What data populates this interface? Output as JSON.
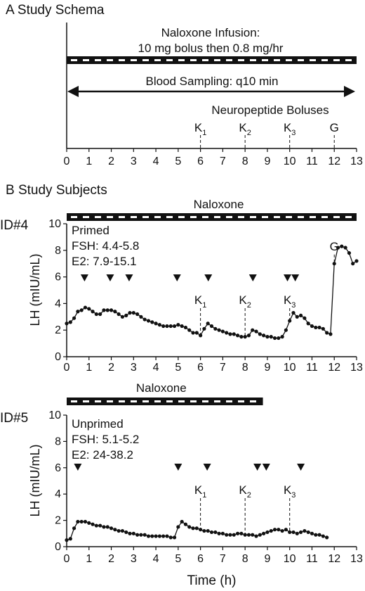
{
  "panel_a": {
    "label": "A  Study Schema",
    "infusion_label_1": "Naloxone Infusion:",
    "infusion_label_2": "10 mg bolus then 0.8 mg/hr",
    "sampling_label": "Blood Sampling: q10 min",
    "boluses_label": "Neuropeptide Boluses",
    "boluses": [
      {
        "label": "K",
        "sub": "1",
        "x": 6
      },
      {
        "label": "K",
        "sub": "2",
        "x": 8
      },
      {
        "label": "K",
        "sub": "3",
        "x": 10
      },
      {
        "label": "G",
        "sub": "",
        "x": 12
      }
    ]
  },
  "panel_b": {
    "label": "B  Study Subjects"
  },
  "chart_data": [
    {
      "type": "line",
      "subject": "ID#4",
      "bar_label": "Naloxone",
      "naloxone_bar": [
        0,
        13
      ],
      "info": [
        "Primed",
        "FSH: 4.4-5.8",
        "E2: 7.9-15.1"
      ],
      "xlabel": "",
      "ylabel": "LH (mIU/mL)",
      "xlim": [
        0,
        13
      ],
      "ylim": [
        0,
        10
      ],
      "xticks": [
        "0",
        "1",
        "2",
        "3",
        "4",
        "5",
        "6",
        "7",
        "8",
        "9",
        "10",
        "11",
        "12",
        "13"
      ],
      "yticks": [
        "0",
        "2",
        "4",
        "6",
        "8",
        "10"
      ],
      "pulses": [
        0.8,
        1.95,
        2.8,
        4.95,
        6.35,
        8.35,
        9.9,
        10.25
      ],
      "bolus_marks": [
        {
          "label": "K",
          "sub": "1",
          "x": 6
        },
        {
          "label": "K",
          "sub": "2",
          "x": 8
        },
        {
          "label": "K",
          "sub": "3",
          "x": 10
        },
        {
          "label": "G",
          "sub": "",
          "x": 12
        }
      ],
      "x": [
        0,
        0.167,
        0.333,
        0.5,
        0.667,
        0.833,
        1,
        1.167,
        1.333,
        1.5,
        1.667,
        1.833,
        2,
        2.167,
        2.333,
        2.5,
        2.667,
        2.833,
        3,
        3.167,
        3.333,
        3.5,
        3.667,
        3.833,
        4,
        4.167,
        4.333,
        4.5,
        4.667,
        4.833,
        5,
        5.167,
        5.333,
        5.5,
        5.667,
        5.833,
        6,
        6.167,
        6.333,
        6.5,
        6.667,
        6.833,
        7,
        7.167,
        7.333,
        7.5,
        7.667,
        7.833,
        8,
        8.167,
        8.333,
        8.5,
        8.667,
        8.833,
        9,
        9.167,
        9.333,
        9.5,
        9.667,
        9.833,
        10,
        10.167,
        10.333,
        10.5,
        10.667,
        10.833,
        11,
        11.167,
        11.333,
        11.5,
        11.667,
        11.833,
        12,
        12.167,
        12.333,
        12.5,
        12.667,
        12.833,
        13
      ],
      "y": [
        2.5,
        2.6,
        2.9,
        3.4,
        3.5,
        3.7,
        3.6,
        3.4,
        3.2,
        3.2,
        3.5,
        3.5,
        3.5,
        3.4,
        3.2,
        3.0,
        3.1,
        3.3,
        3.3,
        3.2,
        3.0,
        2.8,
        2.7,
        2.6,
        2.5,
        2.4,
        2.3,
        2.3,
        2.3,
        2.3,
        2.4,
        2.3,
        2.2,
        2.0,
        1.8,
        1.8,
        1.6,
        2.1,
        2.5,
        2.3,
        2.1,
        2.0,
        1.9,
        1.8,
        1.7,
        1.7,
        1.6,
        1.5,
        1.5,
        1.6,
        2.0,
        1.9,
        1.7,
        1.6,
        1.5,
        1.5,
        1.4,
        1.4,
        1.5,
        2.0,
        2.7,
        3.3,
        3.0,
        3.1,
        2.9,
        2.5,
        2.3,
        2.2,
        2.2,
        2.1,
        1.8,
        1.7,
        7.0,
        8.2,
        8.3,
        8.2,
        7.8,
        7.0,
        7.2
      ]
    },
    {
      "type": "line",
      "subject": "ID#5",
      "bar_label": "Naloxone",
      "naloxone_bar": [
        0,
        8.8
      ],
      "info": [
        "Unprimed",
        "FSH: 5.1-5.2",
        "E2: 24-38.2"
      ],
      "xlabel": "Time (h)",
      "ylabel": "LH (mIU/mL)",
      "xlim": [
        0,
        13
      ],
      "ylim": [
        0,
        10
      ],
      "xticks": [
        "0",
        "1",
        "2",
        "3",
        "4",
        "5",
        "6",
        "7",
        "8",
        "9",
        "10",
        "11",
        "12",
        "13"
      ],
      "yticks": [
        "0",
        "2",
        "4",
        "6",
        "8",
        "10"
      ],
      "pulses": [
        0.5,
        5.0,
        6.3,
        8.55,
        8.95,
        10.5
      ],
      "bolus_marks": [
        {
          "label": "K",
          "sub": "1",
          "x": 6
        },
        {
          "label": "K",
          "sub": "2",
          "x": 8
        },
        {
          "label": "K",
          "sub": "3",
          "x": 10
        }
      ],
      "x": [
        0,
        0.167,
        0.333,
        0.5,
        0.667,
        0.833,
        1,
        1.167,
        1.333,
        1.5,
        1.667,
        1.833,
        2,
        2.167,
        2.333,
        2.5,
        2.667,
        2.833,
        3,
        3.167,
        3.333,
        3.5,
        3.667,
        3.833,
        4,
        4.167,
        4.333,
        4.5,
        4.667,
        4.833,
        5,
        5.167,
        5.333,
        5.5,
        5.667,
        5.833,
        6,
        6.167,
        6.333,
        6.5,
        6.667,
        6.833,
        7,
        7.167,
        7.333,
        7.5,
        7.667,
        7.833,
        8,
        8.167,
        8.333,
        8.5,
        8.667,
        8.833,
        9,
        9.167,
        9.333,
        9.5,
        9.667,
        9.833,
        10,
        10.167,
        10.333,
        10.5,
        10.667,
        10.833,
        11,
        11.167,
        11.333,
        11.5,
        11.667
      ],
      "y": [
        0.5,
        0.6,
        1.4,
        1.9,
        1.9,
        1.9,
        1.8,
        1.7,
        1.6,
        1.6,
        1.5,
        1.5,
        1.4,
        1.3,
        1.2,
        1.2,
        1.1,
        1.0,
        1.0,
        0.9,
        0.9,
        0.9,
        0.8,
        0.8,
        0.8,
        0.8,
        0.8,
        0.8,
        0.7,
        0.7,
        1.5,
        1.9,
        1.7,
        1.5,
        1.4,
        1.4,
        1.3,
        1.2,
        1.2,
        1.1,
        1.1,
        1.0,
        1.0,
        0.9,
        0.9,
        0.9,
        1.0,
        1.0,
        0.9,
        0.9,
        0.9,
        0.8,
        0.9,
        1.0,
        1.1,
        1.2,
        1.3,
        1.3,
        1.2,
        1.3,
        1.1,
        1.1,
        1.0,
        1.1,
        1.2,
        1.1,
        1.0,
        0.9,
        0.9,
        0.8,
        0.7
      ]
    }
  ],
  "schema_axis": {
    "xticks": [
      "0",
      "1",
      "2",
      "3",
      "4",
      "5",
      "6",
      "7",
      "8",
      "9",
      "10",
      "11",
      "12",
      "13"
    ]
  }
}
